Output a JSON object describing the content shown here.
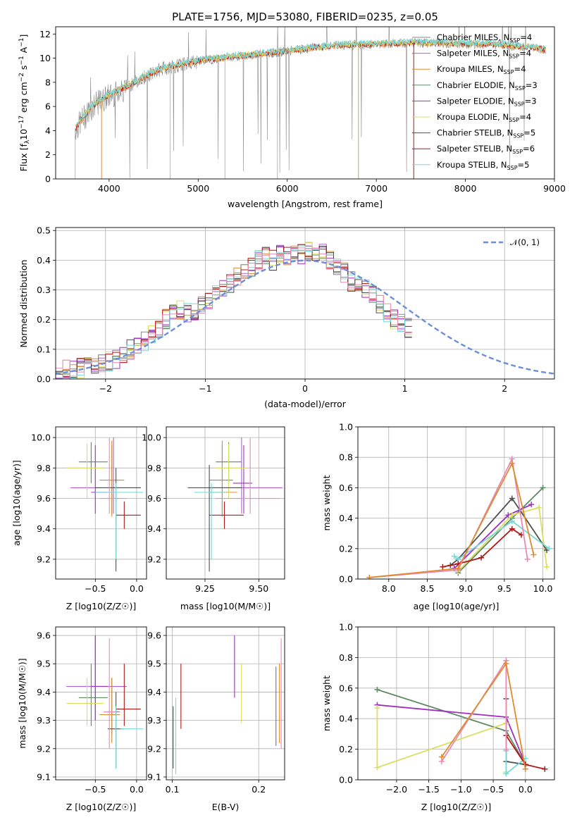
{
  "figure": {
    "title": "PLATE=1756, MJD=53080, FIBERID=0235, z=0.05"
  },
  "colors": {
    "chabrier_miles": "#8a8a8a",
    "salpeter_miles": "#b060d0",
    "kroupa_miles": "#e08a30",
    "chabrier_elodie": "#5e8a60",
    "salpeter_elodie": "#a030c0",
    "kroupa_elodie": "#d8e060",
    "chabrier_stelib": "#505050",
    "salpeter_stelib": "#b01818",
    "kroupa_stelib": "#78d8d8",
    "gauss": "#6b8fd8",
    "pink": "#e889b8",
    "blue": "#6070c0"
  },
  "chart_data": [
    {
      "type": "line",
      "title": "PLATE=1756, MJD=53080, FIBERID=0235, z=0.05",
      "xlabel": "wavelength [Angstrom, rest frame]",
      "ylabel": "Flux [f_λ10^-17 erg cm^-2 s^-1 A^-1]",
      "xlim": [
        3400,
        9000
      ],
      "ylim": [
        0,
        12.6
      ],
      "xticks": [
        "4000",
        "5000",
        "6000",
        "7000",
        "8000",
        "9000"
      ],
      "yticks": [
        "0",
        "2",
        "4",
        "6",
        "8",
        "10",
        "12"
      ],
      "legend_position": "right",
      "legend": [
        "Chabrier MILES, N_SSP=4",
        "Salpeter MILES, N_SSP=4",
        "Kroupa MILES, N_SSP=4",
        "Chabrier ELODIE, N_SSP=3",
        "Salpeter ELODIE, N_SSP=3",
        "Kroupa ELODIE, N_SSP=4",
        "Chabrier STELIB, N_SSP=5",
        "Salpeter STELIB, N_SSP=6",
        "Kroupa STELIB, N_SSP=5"
      ],
      "continuum": [
        [
          3620,
          4.2
        ],
        [
          3700,
          5.0
        ],
        [
          3800,
          6.0
        ],
        [
          3900,
          6.5
        ],
        [
          4000,
          7.0
        ],
        [
          4200,
          7.7
        ],
        [
          4400,
          8.5
        ],
        [
          4600,
          9.2
        ],
        [
          4800,
          9.5
        ],
        [
          5000,
          9.8
        ],
        [
          5300,
          10.1
        ],
        [
          5600,
          10.3
        ],
        [
          6000,
          10.6
        ],
        [
          6300,
          10.9
        ],
        [
          6600,
          11.1
        ],
        [
          7000,
          11.2
        ],
        [
          7400,
          11.3
        ],
        [
          7700,
          11.3
        ],
        [
          8000,
          11.2
        ],
        [
          8300,
          11.2
        ],
        [
          8600,
          11.0
        ],
        [
          8800,
          10.9
        ],
        [
          8900,
          10.7
        ]
      ],
      "dips": [
        [
          4685,
          0
        ],
        [
          3915,
          0
        ],
        [
          6800,
          0
        ],
        [
          7420,
          0
        ]
      ]
    },
    {
      "type": "bar",
      "xlabel": "(data-model)/error",
      "ylabel": "Normed distribution",
      "xlim": [
        -2.5,
        2.5
      ],
      "ylim": [
        0,
        0.51
      ],
      "xticks": [
        "−2",
        "−1",
        "0",
        "1",
        "2"
      ],
      "yticks": [
        "0.0",
        "0.1",
        "0.2",
        "0.3",
        "0.4",
        "0.5"
      ],
      "legend": [
        "𝒩(0, 1)"
      ],
      "bin_width": 0.1,
      "base_hist": [
        0.025,
        0.03,
        0.03,
        0.035,
        0.04,
        0.05,
        0.055,
        0.06,
        0.07,
        0.08,
        0.1,
        0.11,
        0.13,
        0.15,
        0.17,
        0.2,
        0.22,
        0.23,
        0.22,
        0.23,
        0.25,
        0.27,
        0.28,
        0.3,
        0.32,
        0.34,
        0.36,
        0.38,
        0.4,
        0.41,
        0.4,
        0.42,
        0.41,
        0.43,
        0.42,
        0.43,
        0.41,
        0.42,
        0.4,
        0.38,
        0.36,
        0.33,
        0.31,
        0.3,
        0.28,
        0.25,
        0.22,
        0.2,
        0.19,
        0.17,
        0.15,
        0.13,
        0.11,
        0.1,
        0.08,
        0.07,
        0.06,
        0.05,
        0.045,
        0.04,
        0.04,
        0.035,
        0.03,
        0.03,
        0.025,
        0.025,
        0.02,
        0.02,
        0.02,
        0.02
      ]
    },
    {
      "type": "scatter",
      "xlabel": "Z [log10(Z/Z☉)]",
      "ylabel": "age [log10(age/yr)]",
      "xlim": [
        -0.98,
        0.12
      ],
      "ylim": [
        9.07,
        10.07
      ],
      "xticks": [
        "−0.5",
        "0.0"
      ],
      "yticks": [
        "9.2",
        "9.4",
        "9.6",
        "9.8",
        "10.0"
      ],
      "points": [
        {
          "c": "chabrier_miles",
          "x": -0.3,
          "y": 9.72,
          "xe": [
            -0.4,
            -0.2
          ],
          "ye": [
            9.5,
            9.95
          ]
        },
        {
          "c": "salpeter_miles",
          "x": -0.28,
          "y": 9.67,
          "xe": [
            -0.8,
            0.05
          ],
          "ye": [
            9.5,
            10.0
          ]
        },
        {
          "c": "kroupa_miles",
          "x": -0.3,
          "y": 9.72,
          "xe": [
            -0.45,
            -0.15
          ],
          "ye": [
            9.48,
            9.98
          ]
        },
        {
          "c": "chabrier_elodie",
          "x": -0.55,
          "y": 9.84,
          "xe": [
            -0.7,
            -0.35
          ],
          "ye": [
            9.7,
            9.97
          ]
        },
        {
          "c": "salpeter_elodie",
          "x": -0.5,
          "y": 9.64,
          "xe": [
            -0.55,
            -0.35
          ],
          "ye": [
            9.5,
            9.95
          ]
        },
        {
          "c": "kroupa_elodie",
          "x": -0.6,
          "y": 9.8,
          "xe": [
            -0.85,
            -0.4
          ],
          "ye": [
            9.6,
            9.96
          ]
        },
        {
          "c": "chabrier_stelib",
          "x": -0.25,
          "y": 9.67,
          "xe": [
            -0.5,
            0.05
          ],
          "ye": [
            9.12,
            9.8
          ]
        },
        {
          "c": "salpeter_stelib",
          "x": -0.15,
          "y": 9.49,
          "xe": [
            -0.25,
            0.05
          ],
          "ye": [
            9.4,
            9.58
          ]
        },
        {
          "c": "kroupa_stelib",
          "x": -0.25,
          "y": 9.64,
          "xe": [
            -0.5,
            0.08
          ],
          "ye": [
            9.2,
            9.7
          ]
        },
        {
          "c": "pink",
          "x": -0.33,
          "y": 9.6,
          "xe": [
            -0.45,
            -0.12
          ],
          "ye": [
            9.5,
            10.0
          ]
        }
      ]
    },
    {
      "type": "scatter",
      "xlabel": "mass [log10(M/M☉)]",
      "ylabel": "",
      "xlim": [
        9.07,
        9.62
      ],
      "ylim": [
        9.07,
        10.07
      ],
      "xticks": [
        "9.25",
        "9.50"
      ],
      "yticks": [
        "9.2",
        "9.4",
        "9.6",
        "9.8",
        "10.0"
      ],
      "points": [
        {
          "c": "chabrier_miles",
          "x": 9.33,
          "y": 9.72,
          "xe": [
            9.27,
            9.38
          ],
          "ye": [
            9.5,
            9.95
          ]
        },
        {
          "c": "salpeter_miles",
          "x": 9.42,
          "y": 9.67,
          "xe": [
            9.27,
            9.61
          ],
          "ye": [
            9.5,
            10.0
          ]
        },
        {
          "c": "kroupa_miles",
          "x": 9.33,
          "y": 9.64,
          "xe": [
            9.27,
            9.4
          ],
          "ye": [
            9.48,
            9.98
          ]
        },
        {
          "c": "chabrier_elodie",
          "x": 9.36,
          "y": 9.84,
          "xe": [
            9.3,
            9.42
          ],
          "ye": [
            9.7,
            9.97
          ]
        },
        {
          "c": "salpeter_elodie",
          "x": 9.43,
          "y": 9.7,
          "xe": [
            9.38,
            9.47
          ],
          "ye": [
            9.5,
            9.95
          ]
        },
        {
          "c": "kroupa_elodie",
          "x": 9.36,
          "y": 9.8,
          "xe": [
            9.3,
            9.44
          ],
          "ye": [
            9.6,
            9.96
          ]
        },
        {
          "c": "chabrier_stelib",
          "x": 9.27,
          "y": 9.67,
          "xe": [
            9.17,
            9.42
          ],
          "ye": [
            9.12,
            9.82
          ]
        },
        {
          "c": "salpeter_stelib",
          "x": 9.34,
          "y": 9.49,
          "xe": [
            9.27,
            9.43
          ],
          "ye": [
            9.4,
            9.58
          ]
        },
        {
          "c": "kroupa_stelib",
          "x": 9.28,
          "y": 9.64,
          "xe": [
            9.2,
            9.35
          ],
          "ye": [
            9.2,
            9.7
          ]
        },
        {
          "c": "pink",
          "x": 9.46,
          "y": 9.6,
          "xe": [
            9.3,
            9.6
          ],
          "ye": [
            9.5,
            10.0
          ]
        }
      ]
    },
    {
      "type": "line",
      "xlabel": "age [log10(age/yr)]",
      "ylabel": "mass weight",
      "xlim": [
        7.6,
        10.15
      ],
      "ylim": [
        0,
        1.0
      ],
      "xticks": [
        "8.0",
        "8.5",
        "9.0",
        "9.5",
        "10.0"
      ],
      "yticks": [
        "0.0",
        "0.2",
        "0.4",
        "0.6",
        "0.8",
        "1.0"
      ],
      "series": [
        {
          "c": "chabrier_elodie",
          "pts": [
            [
              8.9,
              0.04
            ],
            [
              9.6,
              0.4
            ],
            [
              10.0,
              0.6
            ]
          ]
        },
        {
          "c": "salpeter_elodie",
          "pts": [
            [
              8.85,
              0.07
            ],
            [
              9.55,
              0.42
            ],
            [
              9.85,
              0.49
            ]
          ]
        },
        {
          "c": "kroupa_elodie",
          "pts": [
            [
              8.9,
              0.05
            ],
            [
              9.6,
              0.42
            ],
            [
              9.95,
              0.47
            ],
            [
              10.05,
              0.08
            ]
          ]
        },
        {
          "c": "chabrier_stelib",
          "pts": [
            [
              8.8,
              0.09
            ],
            [
              8.9,
              0.13
            ],
            [
              9.6,
              0.53
            ],
            [
              10.05,
              0.19
            ]
          ]
        },
        {
          "c": "kroupa_stelib",
          "pts": [
            [
              8.85,
              0.15
            ],
            [
              8.9,
              0.13
            ],
            [
              9.6,
              0.38
            ],
            [
              10.08,
              0.2
            ]
          ]
        },
        {
          "c": "salpeter_stelib",
          "pts": [
            [
              8.7,
              0.08
            ],
            [
              8.9,
              0.1
            ],
            [
              9.2,
              0.14
            ],
            [
              9.6,
              0.33
            ],
            [
              9.72,
              0.29
            ]
          ]
        },
        {
          "c": "pink",
          "pts": [
            [
              7.75,
              0.01
            ],
            [
              8.9,
              0.06
            ],
            [
              9.6,
              0.79
            ],
            [
              9.8,
              0.13
            ]
          ]
        },
        {
          "c": "kroupa_miles",
          "pts": [
            [
              7.75,
              0.01
            ],
            [
              8.9,
              0.07
            ],
            [
              9.6,
              0.76
            ],
            [
              9.88,
              0.16
            ]
          ]
        }
      ]
    },
    {
      "type": "scatter",
      "xlabel": "Z [log10(Z/Z☉)]",
      "ylabel": "mass [log10(M/M☉)]",
      "xlim": [
        -0.98,
        0.12
      ],
      "ylim": [
        9.09,
        9.63
      ],
      "xticks": [
        "−0.5",
        "0.0"
      ],
      "yticks": [
        "9.1",
        "9.2",
        "9.3",
        "9.4",
        "9.5",
        "9.6"
      ],
      "points": [
        {
          "c": "chabrier_miles",
          "x": -0.3,
          "y": 9.33,
          "xe": [
            -0.4,
            -0.2
          ],
          "ye": [
            9.25,
            9.45
          ]
        },
        {
          "c": "salpeter_miles",
          "x": -0.5,
          "y": 9.42,
          "xe": [
            -0.85,
            -0.12
          ],
          "ye": [
            9.3,
            9.6
          ]
        },
        {
          "c": "kroupa_miles",
          "x": -0.3,
          "y": 9.32,
          "xe": [
            -0.45,
            -0.2
          ],
          "ye": [
            9.22,
            9.45
          ]
        },
        {
          "c": "chabrier_elodie",
          "x": -0.55,
          "y": 9.38,
          "xe": [
            -0.7,
            -0.35
          ],
          "ye": [
            9.28,
            9.5
          ]
        },
        {
          "c": "salpeter_elodie",
          "x": -0.5,
          "y": 9.42,
          "xe": [
            -0.55,
            -0.35
          ],
          "ye": [
            9.3,
            9.6
          ]
        },
        {
          "c": "kroupa_elodie",
          "x": -0.6,
          "y": 9.36,
          "xe": [
            -0.85,
            -0.4
          ],
          "ye": [
            9.28,
            9.45
          ]
        },
        {
          "c": "chabrier_stelib",
          "x": -0.25,
          "y": 9.27,
          "xe": [
            -0.35,
            -0.15
          ],
          "ye": [
            9.13,
            9.4
          ]
        },
        {
          "c": "salpeter_stelib",
          "x": -0.15,
          "y": 9.34,
          "xe": [
            -0.25,
            0.05
          ],
          "ye": [
            9.28,
            9.5
          ]
        },
        {
          "c": "kroupa_stelib",
          "x": -0.25,
          "y": 9.27,
          "xe": [
            -0.2,
            0.08
          ],
          "ye": [
            9.13,
            9.35
          ]
        },
        {
          "c": "pink",
          "x": -0.33,
          "y": 9.33,
          "xe": [
            -0.4,
            -0.25
          ],
          "ye": [
            9.2,
            9.59
          ]
        }
      ]
    },
    {
      "type": "scatter",
      "xlabel": "E(B-V)",
      "ylabel": "",
      "xlim": [
        0.093,
        0.23
      ],
      "ylim": [
        9.09,
        9.63
      ],
      "xticks": [
        "0.1",
        "0.2"
      ],
      "yticks": [
        "9.1",
        "9.2",
        "9.3",
        "9.4",
        "9.5",
        "9.6"
      ],
      "points": [
        {
          "c": "chabrier_stelib",
          "x": 0.101,
          "ye": [
            9.13,
            9.35
          ]
        },
        {
          "c": "kroupa_stelib",
          "x": 0.104,
          "ye": [
            9.11,
            9.38
          ]
        },
        {
          "c": "salpeter_stelib",
          "x": 0.11,
          "ye": [
            9.27,
            9.5
          ]
        },
        {
          "c": "salpeter_elodie",
          "x": 0.172,
          "ye": [
            9.38,
            9.6
          ]
        },
        {
          "c": "kroupa_elodie",
          "x": 0.18,
          "ye": [
            9.29,
            9.5
          ]
        },
        {
          "c": "blue",
          "x": 0.22,
          "ye": [
            9.21,
            9.49
          ]
        },
        {
          "c": "kroupa_miles",
          "x": 0.224,
          "ye": [
            9.22,
            9.5
          ]
        },
        {
          "c": "pink",
          "x": 0.226,
          "ye": [
            9.2,
            9.59
          ]
        }
      ]
    },
    {
      "type": "line",
      "xlabel": "Z [log10(Z/Z☉)]",
      "ylabel": "mass weight",
      "xlim": [
        -2.6,
        0.45
      ],
      "ylim": [
        0,
        1.0
      ],
      "xticks": [
        "−2.0",
        "−1.5",
        "−1.0",
        "−0.5",
        "0.0"
      ],
      "yticks": [
        "0.0",
        "0.2",
        "0.4",
        "0.6",
        "0.8",
        "1.0"
      ],
      "series": [
        {
          "c": "chabrier_elodie",
          "pts": [
            [
              -2.3,
              0.59
            ],
            [
              -0.3,
              0.32
            ],
            [
              0.0,
              0.1
            ]
          ]
        },
        {
          "c": "salpeter_elodie",
          "pts": [
            [
              -2.3,
              0.49
            ],
            [
              -0.3,
              0.41
            ],
            [
              0.0,
              0.1
            ]
          ]
        },
        {
          "c": "kroupa_elodie",
          "pts": [
            [
              -2.3,
              0.47
            ],
            [
              -2.3,
              0.08
            ],
            [
              -0.3,
              0.37
            ],
            [
              -0.3,
              0.05
            ]
          ]
        },
        {
          "c": "chabrier_stelib",
          "pts": [
            [
              -0.3,
              0.53
            ],
            [
              -0.3,
              0.12
            ],
            [
              0.0,
              0.1
            ]
          ]
        },
        {
          "c": "kroupa_stelib",
          "pts": [
            [
              -0.3,
              0.19
            ],
            [
              -0.3,
              0.04
            ],
            [
              0.0,
              0.14
            ]
          ]
        },
        {
          "c": "salpeter_stelib",
          "pts": [
            [
              -0.3,
              0.29
            ],
            [
              0.0,
              0.1
            ],
            [
              0.3,
              0.07
            ]
          ]
        },
        {
          "c": "pink",
          "pts": [
            [
              -1.3,
              0.12
            ],
            [
              -0.3,
              0.78
            ],
            [
              -0.3,
              0.2
            ]
          ]
        },
        {
          "c": "kroupa_miles",
          "pts": [
            [
              -1.3,
              0.15
            ],
            [
              -0.3,
              0.76
            ],
            [
              0.0,
              0.07
            ]
          ]
        }
      ]
    }
  ]
}
